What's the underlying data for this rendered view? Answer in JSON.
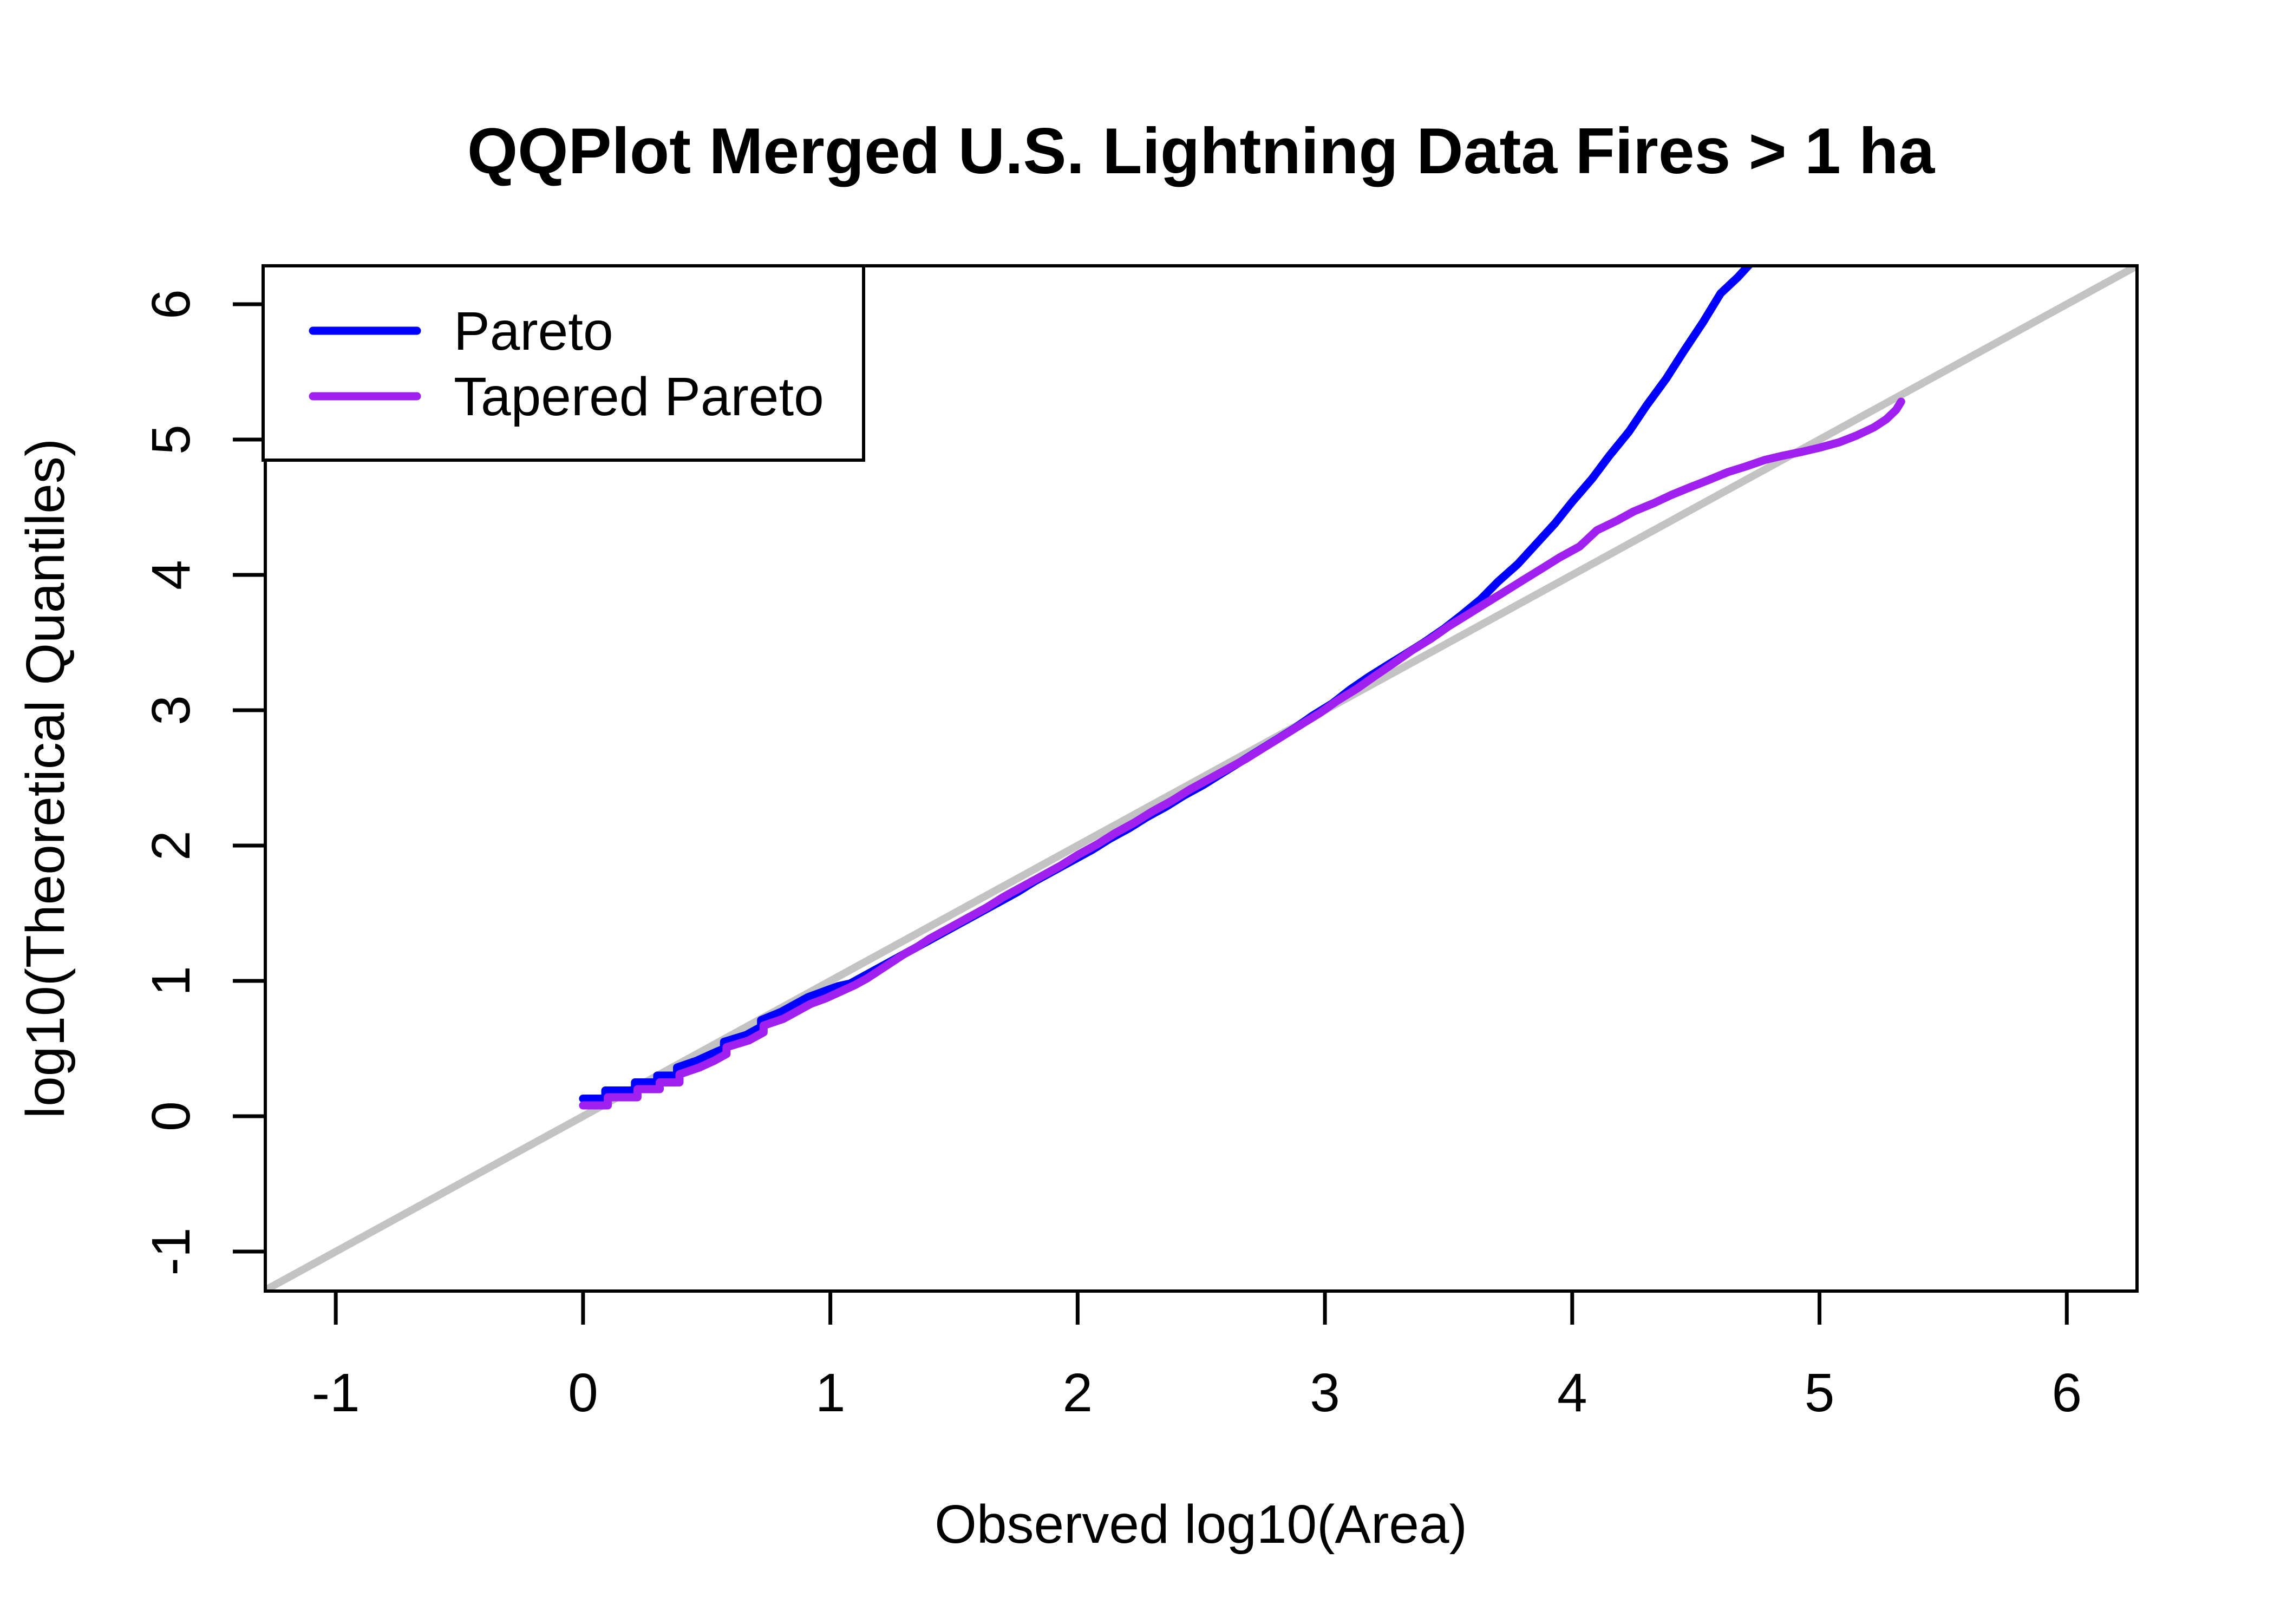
{
  "title": "QQPlot Merged U.S. Lightning Data Fires > 1 ha",
  "chart_data": {
    "type": "line",
    "title": "QQPlot Merged U.S. Lightning Data Fires > 1 ha",
    "xlabel": "Observed log10(Area)",
    "ylabel": "log10(Theoretical Quantiles)",
    "xlim": [
      -1.285,
      6.284
    ],
    "ylim": [
      -1.292,
      6.284
    ],
    "x_ticks": [
      -1,
      0,
      1,
      2,
      3,
      4,
      5,
      6
    ],
    "y_ticks": [
      -1,
      0,
      1,
      2,
      3,
      4,
      5,
      6
    ],
    "grid": false,
    "background": "#ffffff",
    "axis_color": "#000000",
    "legend_position": "top-left",
    "reference_line": {
      "name": "identity-line",
      "equation": "y = x",
      "color": "#C3C3C3"
    },
    "series": [
      {
        "name": "Pareto",
        "color": "#0000FF",
        "points": [
          [
            0.0,
            0.13
          ],
          [
            0.09,
            0.13
          ],
          [
            0.09,
            0.19
          ],
          [
            0.21,
            0.19
          ],
          [
            0.21,
            0.25
          ],
          [
            0.3,
            0.25
          ],
          [
            0.3,
            0.3
          ],
          [
            0.38,
            0.3
          ],
          [
            0.38,
            0.36
          ],
          [
            0.46,
            0.41
          ],
          [
            0.52,
            0.46
          ],
          [
            0.57,
            0.5
          ],
          [
            0.57,
            0.55
          ],
          [
            0.66,
            0.6
          ],
          [
            0.72,
            0.66
          ],
          [
            0.72,
            0.71
          ],
          [
            0.8,
            0.77
          ],
          [
            0.86,
            0.83
          ],
          [
            0.91,
            0.88
          ],
          [
            0.97,
            0.92
          ],
          [
            1.03,
            0.96
          ],
          [
            1.08,
            0.98
          ],
          [
            1.13,
            1.03
          ],
          [
            1.18,
            1.08
          ],
          [
            1.23,
            1.13
          ],
          [
            1.28,
            1.18
          ],
          [
            1.33,
            1.23
          ],
          [
            1.38,
            1.28
          ],
          [
            1.46,
            1.36
          ],
          [
            1.53,
            1.43
          ],
          [
            1.61,
            1.51
          ],
          [
            1.68,
            1.58
          ],
          [
            1.76,
            1.66
          ],
          [
            1.83,
            1.74
          ],
          [
            1.91,
            1.82
          ],
          [
            1.98,
            1.89
          ],
          [
            2.06,
            1.97
          ],
          [
            2.13,
            2.05
          ],
          [
            2.21,
            2.13
          ],
          [
            2.28,
            2.21
          ],
          [
            2.36,
            2.29
          ],
          [
            2.43,
            2.37
          ],
          [
            2.51,
            2.45
          ],
          [
            2.58,
            2.53
          ],
          [
            2.66,
            2.62
          ],
          [
            2.73,
            2.7
          ],
          [
            2.81,
            2.79
          ],
          [
            2.88,
            2.87
          ],
          [
            2.95,
            2.96
          ],
          [
            3.03,
            3.05
          ],
          [
            3.1,
            3.15
          ],
          [
            3.18,
            3.25
          ],
          [
            3.25,
            3.33
          ],
          [
            3.33,
            3.42
          ],
          [
            3.4,
            3.5
          ],
          [
            3.48,
            3.6
          ],
          [
            3.55,
            3.7
          ],
          [
            3.63,
            3.82
          ],
          [
            3.7,
            3.95
          ],
          [
            3.78,
            4.08
          ],
          [
            3.85,
            4.22
          ],
          [
            3.93,
            4.38
          ],
          [
            4.0,
            4.54
          ],
          [
            4.08,
            4.71
          ],
          [
            4.15,
            4.88
          ],
          [
            4.23,
            5.06
          ],
          [
            4.3,
            5.25
          ],
          [
            4.38,
            5.45
          ],
          [
            4.45,
            5.65
          ],
          [
            4.53,
            5.87
          ],
          [
            4.6,
            6.08
          ],
          [
            4.67,
            6.2
          ],
          [
            4.72,
            6.3
          ]
        ]
      },
      {
        "name": "Tapered Pareto",
        "color": "#A020F0",
        "points": [
          [
            0.0,
            0.08
          ],
          [
            0.1,
            0.08
          ],
          [
            0.1,
            0.14
          ],
          [
            0.22,
            0.14
          ],
          [
            0.22,
            0.2
          ],
          [
            0.31,
            0.2
          ],
          [
            0.31,
            0.25
          ],
          [
            0.39,
            0.25
          ],
          [
            0.39,
            0.31
          ],
          [
            0.47,
            0.36
          ],
          [
            0.53,
            0.41
          ],
          [
            0.58,
            0.46
          ],
          [
            0.58,
            0.51
          ],
          [
            0.67,
            0.56
          ],
          [
            0.73,
            0.62
          ],
          [
            0.73,
            0.67
          ],
          [
            0.81,
            0.72
          ],
          [
            0.87,
            0.78
          ],
          [
            0.92,
            0.83
          ],
          [
            0.98,
            0.87
          ],
          [
            1.04,
            0.92
          ],
          [
            1.1,
            0.97
          ],
          [
            1.15,
            1.02
          ],
          [
            1.2,
            1.08
          ],
          [
            1.25,
            1.14
          ],
          [
            1.3,
            1.2
          ],
          [
            1.35,
            1.25
          ],
          [
            1.4,
            1.31
          ],
          [
            1.48,
            1.39
          ],
          [
            1.55,
            1.46
          ],
          [
            1.63,
            1.54
          ],
          [
            1.7,
            1.62
          ],
          [
            1.78,
            1.7
          ],
          [
            1.85,
            1.77
          ],
          [
            1.93,
            1.85
          ],
          [
            2.0,
            1.93
          ],
          [
            2.08,
            2.01
          ],
          [
            2.15,
            2.09
          ],
          [
            2.23,
            2.17
          ],
          [
            2.3,
            2.25
          ],
          [
            2.38,
            2.33
          ],
          [
            2.45,
            2.41
          ],
          [
            2.53,
            2.49
          ],
          [
            2.6,
            2.56
          ],
          [
            2.68,
            2.64
          ],
          [
            2.75,
            2.72
          ],
          [
            2.83,
            2.81
          ],
          [
            2.9,
            2.89
          ],
          [
            2.98,
            2.98
          ],
          [
            3.05,
            3.07
          ],
          [
            3.13,
            3.16
          ],
          [
            3.2,
            3.25
          ],
          [
            3.28,
            3.35
          ],
          [
            3.35,
            3.44
          ],
          [
            3.43,
            3.53
          ],
          [
            3.5,
            3.62
          ],
          [
            3.58,
            3.71
          ],
          [
            3.65,
            3.79
          ],
          [
            3.73,
            3.88
          ],
          [
            3.8,
            3.96
          ],
          [
            3.88,
            4.05
          ],
          [
            3.95,
            4.13
          ],
          [
            4.03,
            4.21
          ],
          [
            4.1,
            4.33
          ],
          [
            4.18,
            4.4
          ],
          [
            4.25,
            4.47
          ],
          [
            4.33,
            4.53
          ],
          [
            4.4,
            4.59
          ],
          [
            4.48,
            4.65
          ],
          [
            4.55,
            4.7
          ],
          [
            4.63,
            4.76
          ],
          [
            4.7,
            4.8
          ],
          [
            4.78,
            4.85
          ],
          [
            4.85,
            4.88
          ],
          [
            4.93,
            4.91
          ],
          [
            5.0,
            4.94
          ],
          [
            5.08,
            4.98
          ],
          [
            5.15,
            5.03
          ],
          [
            5.22,
            5.09
          ],
          [
            5.27,
            5.15
          ],
          [
            5.31,
            5.22
          ],
          [
            5.33,
            5.28
          ]
        ]
      }
    ]
  },
  "legend": {
    "entries": [
      {
        "label": "Pareto",
        "color": "#0000FF"
      },
      {
        "label": "Tapered Pareto",
        "color": "#A020F0"
      }
    ]
  }
}
